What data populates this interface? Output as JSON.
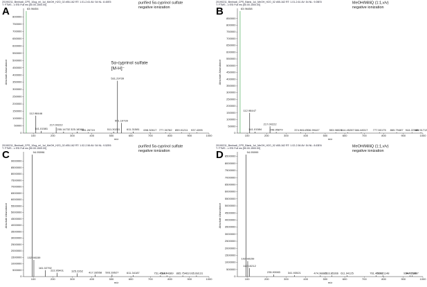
{
  "chart_data": [
    {
      "type": "stem",
      "panel": "A",
      "header": [
        "20190211_Benhadi_CPS_10ug_ml_1ul_MeOH_H2O_02 #55-162 RT: 1.01-2.61 AV: 54 NL: 8.40E5",
        "T: FTMS - c ESI Full ms [50.00-1500.00]"
      ],
      "annotation": [
        "purified 5α-cyprinol sulfate",
        "negative ionization"
      ],
      "peak_annotation": [
        "5α-cyprinol sulfate",
        "[M-H]⁻"
      ],
      "ylabel": "Absolute Abundance",
      "xlabel": "m/z",
      "x": [
        63.96454,
        112.98446,
        141.01581,
        217.00222,
        255.14732,
        325.18369,
        381.26719,
        511.30231,
        531.29739,
        551.19739,
        611.31581,
        698.32617,
        777.30782,
        859.01211,
        937.4395
      ],
      "values": [
        840000,
        120000,
        15000,
        40000,
        10000,
        10000,
        5000,
        10000,
        360000,
        70000,
        10000,
        5000,
        5000,
        5000,
        5000
      ],
      "xlim": [
        50,
        1000
      ],
      "xticks": [
        100,
        200,
        300,
        400,
        500,
        600,
        700,
        800,
        900,
        1000
      ],
      "ylim": [
        0,
        840000
      ],
      "yticks": [
        0,
        50000,
        100000,
        150000,
        200000,
        250000,
        300000,
        350000,
        400000,
        450000,
        500000,
        550000,
        600000,
        650000,
        700000,
        750000,
        800000
      ]
    },
    {
      "type": "stem",
      "panel": "B",
      "header": [
        "20190211_Benhadi_CPS_Blank_1ul_MeOH_H2O_02 #55-162 RT: 1.01-2.61 AV: 54 NL: 9.05E5",
        "T: FTMS - c ESI Full ms [50.00-1500.00]"
      ],
      "annotation": [
        "MeOH/MilliQ (1:1,v/v)",
        "negative ionization"
      ],
      "ylabel": "Absolute Abundance",
      "xlabel": "m/z",
      "x": [
        63.96458,
        112.98447,
        141.01584,
        217.00222,
        248.95879,
        374.98147,
        436.99447,
        553.98026,
        614.45287,
        684.48317,
        777.50175,
        865.79487,
        944.22146,
        989.51713
      ],
      "values": [
        905000,
        150000,
        10000,
        50000,
        8000,
        5000,
        5000,
        5000,
        5000,
        5000,
        5000,
        5000,
        5000,
        5000
      ],
      "xlim": [
        50,
        1000
      ],
      "xticks": [
        100,
        200,
        300,
        400,
        500,
        600,
        700,
        800,
        900,
        1000
      ],
      "ylim": [
        0,
        905000
      ],
      "yticks": [
        0,
        50000,
        100000,
        150000,
        200000,
        250000,
        300000,
        350000,
        400000,
        450000,
        500000,
        550000,
        600000,
        650000,
        700000,
        750000,
        800000,
        850000
      ]
    },
    {
      "type": "stem",
      "panel": "C",
      "header": [
        "20190211_Benhadi_CPS_10ug_ml_1ul_MeOH_H2O_02 #55-162 RT: 1.02-2.56 AV: 54 NL: 9.52E6",
        "T: FTMS - c ESI Full ms [50.00-1500.00]"
      ],
      "annotation": [
        "purified 5α-cyprinol sulfate",
        "negative ionization"
      ],
      "ylabel": "Absolute Abundance",
      "xlabel": "m/z",
      "x": [
        94.95996,
        102.98159,
        161.02792,
        222.05401,
        325.2262,
        417.33558,
        503.33627,
        611.34187,
        751.46107,
        784.44389,
        865.75463,
        935.68131
      ],
      "values": [
        9520000,
        1300000,
        500000,
        300000,
        250000,
        150000,
        150000,
        100000,
        80000,
        80000,
        80000,
        80000
      ],
      "xlim": [
        50,
        1000
      ],
      "xticks": [
        100,
        200,
        300,
        400,
        500,
        600,
        700,
        800,
        900,
        1000
      ],
      "ylim": [
        0,
        9520000
      ],
      "yticks": [
        0,
        500000,
        1000000,
        1500000,
        2000000,
        2500000,
        3000000,
        3500000,
        4000000,
        4500000,
        5000000,
        5500000,
        6000000,
        6500000,
        7000000,
        7500000,
        8000000,
        8500000,
        9000000
      ]
    },
    {
      "type": "stem",
      "panel": "D",
      "header": [
        "20190211_Benhadi_CPS_Blank_1ul_MeOH_H2O_02 #55-162 RT: 1.02-2.56 AV: 54 NL: 8.63E6",
        "T: FTMS - c ESI Full ms [50.00-1500.00]"
      ],
      "annotation": [
        "MeOH/MilliQ (1:1,v/v)",
        "negative ionization"
      ],
      "ylabel": "Absolute Abundance",
      "xlabel": "m/z",
      "x": [
        94.95999,
        102.98159,
        112.10212,
        235.93983,
        341.93521,
        474.98883,
        533.85366,
        611.94125,
        761.46146,
        795.21148,
        934.76129,
        944.73487
      ],
      "values": [
        8630000,
        1100000,
        600000,
        150000,
        100000,
        80000,
        80000,
        80000,
        80000,
        80000,
        80000,
        80000
      ],
      "xlim": [
        50,
        1000
      ],
      "xticks": [
        100,
        200,
        300,
        400,
        500,
        600,
        700,
        800,
        900,
        1000
      ],
      "ylim": [
        0,
        8630000
      ],
      "yticks": [
        0,
        500000,
        1000000,
        1500000,
        2000000,
        2500000,
        3000000,
        3500000,
        4000000,
        4500000,
        5000000,
        5500000,
        6000000,
        6500000,
        7000000,
        7500000,
        8000000,
        8500000
      ]
    }
  ]
}
